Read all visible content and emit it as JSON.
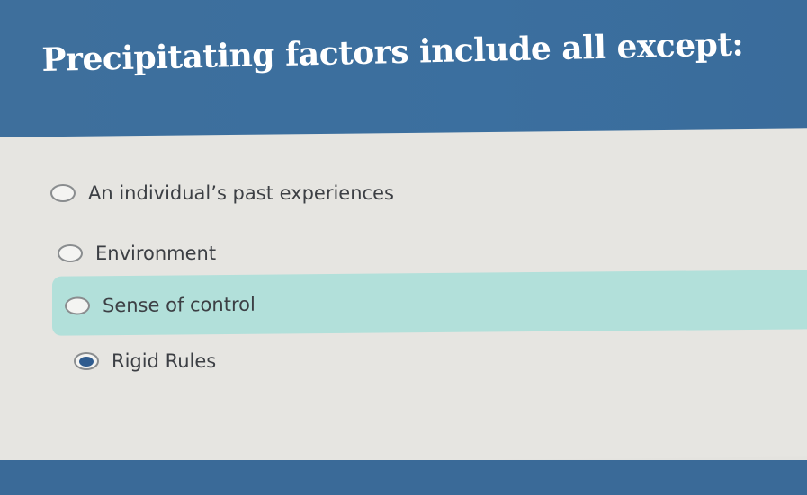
{
  "question": {
    "title": "Precipitating factors include all except:"
  },
  "options": [
    {
      "label": "An individual’s past experiences",
      "selected": false,
      "highlighted": false
    },
    {
      "label": "Environment",
      "selected": false,
      "highlighted": false
    },
    {
      "label": "Sense of control",
      "selected": false,
      "highlighted": true
    },
    {
      "label": "Rigid Rules",
      "selected": true,
      "highlighted": false
    }
  ],
  "colors": {
    "header": "#3e6f9c",
    "highlight": "#b2e0da",
    "selected_dot": "#2f5c8f"
  }
}
